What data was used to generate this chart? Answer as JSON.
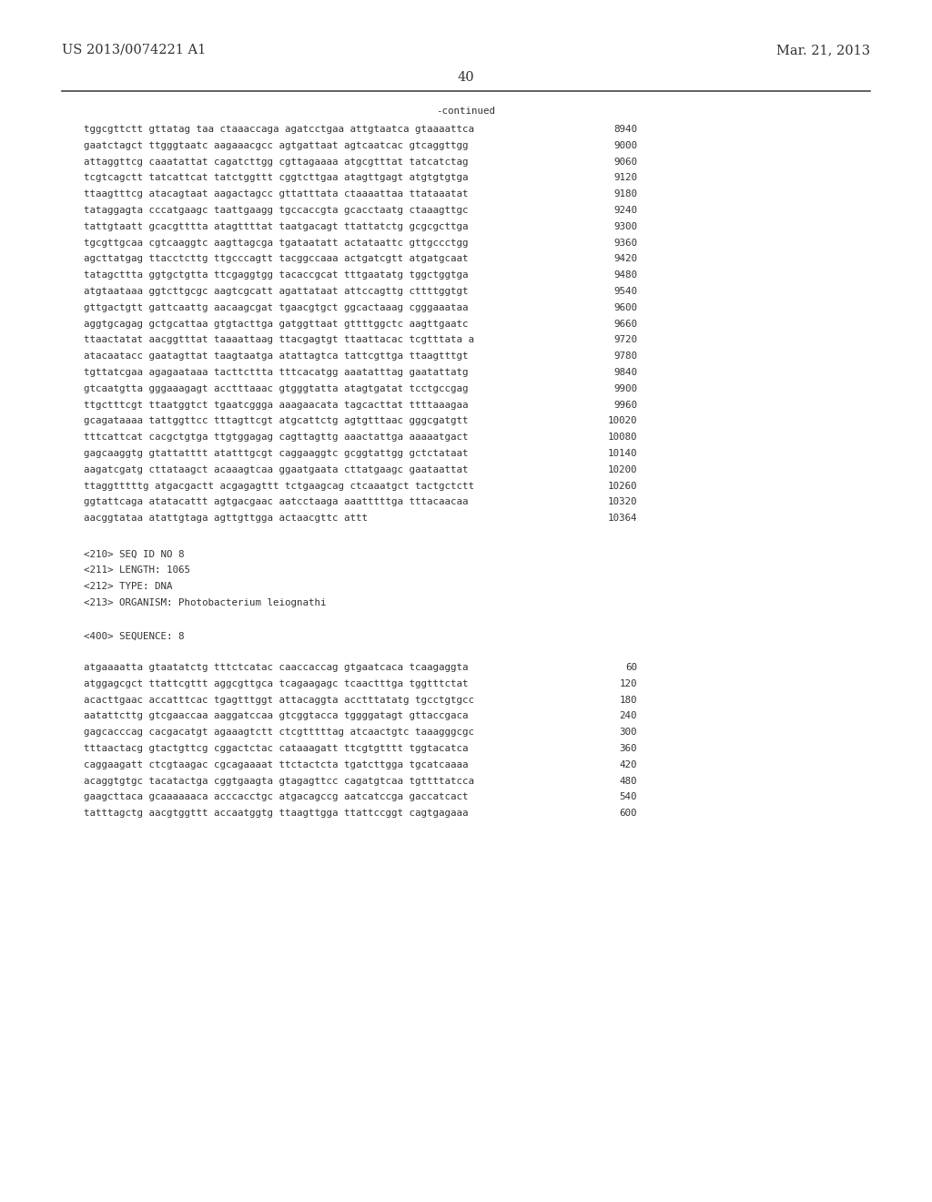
{
  "header_left": "US 2013/0074221 A1",
  "header_right": "Mar. 21, 2013",
  "page_number": "40",
  "continued_label": "-continued",
  "background_color": "#ffffff",
  "text_color": "#333333",
  "font_size_header": 10.5,
  "font_size_page": 10.5,
  "font_size_body": 7.8,
  "sequence_lines": [
    [
      "tggcgttctt gttatag taa ctaaaccaga agatcctgaa attgtaatca gtaaaattca",
      "8940"
    ],
    [
      "gaatctagct ttgggtaatc aagaaacgcc agtgattaat agtcaatcac gtcaggttgg",
      "9000"
    ],
    [
      "attaggttcg caaatattat cagatcttgg cgttagaaaa atgcgtttat tatcatctag",
      "9060"
    ],
    [
      "tcgtcagctt tatcattcat tatctggttt cggtcttgaa atagttgagt atgtgtgtga",
      "9120"
    ],
    [
      "ttaagtttcg atacagtaat aagactagcc gttatttata ctaaaattaa ttataaatat",
      "9180"
    ],
    [
      "tataggagta cccatgaagc taattgaagg tgccaccgta gcacctaatg ctaaagttgc",
      "9240"
    ],
    [
      "tattgtaatt gcacgtttta atagttttat taatgacagt ttattatctg gcgcgcttga",
      "9300"
    ],
    [
      "tgcgttgcaa cgtcaaggtc aagttagcga tgataatatt actataattc gttgccctgg",
      "9360"
    ],
    [
      "agcttatgag ttacctcttg ttgcccagtt tacggccaaa actgatcgtt atgatgcaat",
      "9420"
    ],
    [
      "tatagcttta ggtgctgtta ttcgaggtgg tacaccgcat tttgaatatg tggctggtga",
      "9480"
    ],
    [
      "atgtaataaa ggtcttgcgc aagtcgcatt agattataat attccagttg cttttggtgt",
      "9540"
    ],
    [
      "gttgactgtt gattcaattg aacaagcgat tgaacgtgct ggcactaaag cgggaaataa",
      "9600"
    ],
    [
      "aggtgcagag gctgcattaa gtgtacttga gatggttaat gttttggctc aagttgaatc",
      "9660"
    ],
    [
      "ttaactatat aacggtttat taaaattaag ttacgagtgt ttaattacac tcgtttata a",
      "9720"
    ],
    [
      "atacaatacc gaatagttat taagtaatga atattagtca tattcgttga ttaagtttgt",
      "9780"
    ],
    [
      "tgttatcgaa agagaataaa tacttcttta tttcacatgg aaatatttag gaatattatg",
      "9840"
    ],
    [
      "gtcaatgtta gggaaagagt acctttaaac gtgggtatta atagtgatat tcctgccgag",
      "9900"
    ],
    [
      "ttgctttcgt ttaatggtct tgaatcggga aaagaacata tagcacttat ttttaaagaa",
      "9960"
    ],
    [
      "gcagataaaa tattggttcc tttagttcgt atgcattctg agtgtttaac gggcgatgtt",
      "10020"
    ],
    [
      "tttcattcat cacgctgtga ttgtggagag cagttagttg aaactattga aaaaatgact",
      "10080"
    ],
    [
      "gagcaaggtg gtattatttt atatttgcgt caggaaggtc gcggtattgg gctctataat",
      "10140"
    ],
    [
      "aagatcgatg cttataagct acaaagtcaa ggaatgaata cttatgaagc gaataattat",
      "10200"
    ],
    [
      "ttaggtttttg atgacgactt acgagagttt tctgaagcag ctcaaatgct tactgctctt",
      "10260"
    ],
    [
      "ggtattcaga atatacattt agtgacgaac aatcctaaga aaatttttga tttacaacaa",
      "10320"
    ],
    [
      "aacggtataa atattgtaga agttgttgga actaacgttc attt",
      "10364"
    ]
  ],
  "metadata_lines": [
    "<210> SEQ ID NO 8",
    "<211> LENGTH: 1065",
    "<212> TYPE: DNA",
    "<213> ORGANISM: Photobacterium leiognathi"
  ],
  "sequence_label": "<400> SEQUENCE: 8",
  "seq8_lines": [
    [
      "atgaaaatta gtaatatctg tttctcatac caaccaccag gtgaatcaca tcaagaggta",
      "60"
    ],
    [
      "atggagcgct ttattcgttt aggcgttgca tcagaagagc tcaactttga tggtttctat",
      "120"
    ],
    [
      "acacttgaac accatttcac tgagtttggt attacaggta acctttatatg tgcctgtgcc",
      "180"
    ],
    [
      "aatattcttg gtcgaaccaa aaggatccaa gtcggtacca tggggatagt gttaccgaca",
      "240"
    ],
    [
      "gagcacccag cacgacatgt agaaagtctt ctcgtttttag atcaactgtc taaagggcgc",
      "300"
    ],
    [
      "tttaactacg gtactgttcg cggactctac cataaagatt ttcgtgtttt tggtacatca",
      "360"
    ],
    [
      "caggaagatt ctcgtaagac cgcagaaaat ttctactcta tgatcttgga tgcatcaaaa",
      "420"
    ],
    [
      "acaggtgtgc tacatactga cggtgaagta gtagagttcc cagatgtcaa tgttttatcca",
      "480"
    ],
    [
      "gaagcttaca gcaaaaaaca acccacctgc atgacagccg aatcatccga gaccatcact",
      "540"
    ],
    [
      "tatttagctg aacgtggttt accaatggtg ttaagttgga ttattccggt cagtgagaaa",
      "600"
    ]
  ]
}
